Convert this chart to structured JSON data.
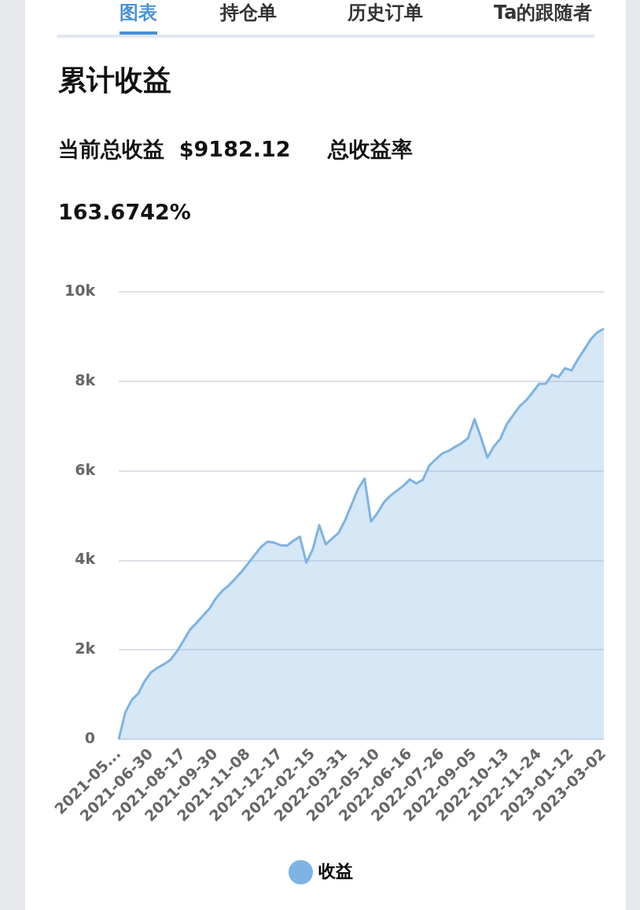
{
  "chart_data": {
    "type": "area",
    "title": "累计收益",
    "subtitle": "当前总收益  $9182.12     总收益率",
    "annotations": [
      "163.6742%",
      "图表",
      "持仓单",
      "历史订单",
      "Ta的跟随者"
    ],
    "categories": [
      "2021-05...",
      null,
      null,
      null,
      null,
      "2021-06-30",
      null,
      null,
      null,
      null,
      "2021-08-17",
      null,
      null,
      null,
      null,
      "2021-09-30",
      null,
      null,
      null,
      null,
      "2021-11-08",
      null,
      null,
      null,
      null,
      "2021-12-17",
      null,
      null,
      null,
      null,
      "2022-02-15",
      null,
      null,
      null,
      null,
      "2022-03-31",
      null,
      null,
      null,
      null,
      "2022-05-10",
      null,
      null,
      null,
      null,
      "2022-06-16",
      null,
      null,
      null,
      null,
      "2022-07-26",
      null,
      null,
      null,
      null,
      "2022-09-05",
      null,
      null,
      null,
      null,
      "2022-10-13",
      null,
      null,
      null,
      null,
      "2022-11-24",
      null,
      null,
      null,
      null,
      "2023-01-12",
      null,
      null,
      null,
      null,
      "2023-03-02"
    ],
    "series": [
      {
        "name": "收益",
        "color": "#7eb3e3",
        "values": [
          0,
          600,
          880,
          1020,
          1300,
          1500,
          1600,
          1680,
          1780,
          1970,
          2200,
          2450,
          2600,
          2760,
          2920,
          3150,
          3320,
          3440,
          3590,
          3750,
          3930,
          4120,
          4300,
          4420,
          4400,
          4340,
          4330,
          4440,
          4530,
          3950,
          4250,
          4790,
          4360,
          4490,
          4620,
          4900,
          5250,
          5600,
          5830,
          4870,
          5060,
          5300,
          5450,
          5560,
          5670,
          5810,
          5720,
          5800,
          6120,
          6260,
          6390,
          6450,
          6540,
          6620,
          6730,
          7160,
          6750,
          6300,
          6550,
          6720,
          7050,
          7250,
          7450,
          7580,
          7760,
          7950,
          7950,
          8150,
          8100,
          8300,
          8250,
          8500,
          8720,
          8950,
          9100,
          9180
        ]
      }
    ],
    "ylim": [
      0,
      10000
    ],
    "yticks": [
      0,
      {
        "value": 2000,
        "label": "2k"
      },
      {
        "value": 4000,
        "label": "4k"
      },
      {
        "value": 6000,
        "label": "6k"
      },
      {
        "value": 8000,
        "label": "8k"
      },
      {
        "value": 10000,
        "label": "10k"
      }
    ],
    "grid": "y",
    "legend": "bottom",
    "marker": "none",
    "line_style": "solid"
  }
}
